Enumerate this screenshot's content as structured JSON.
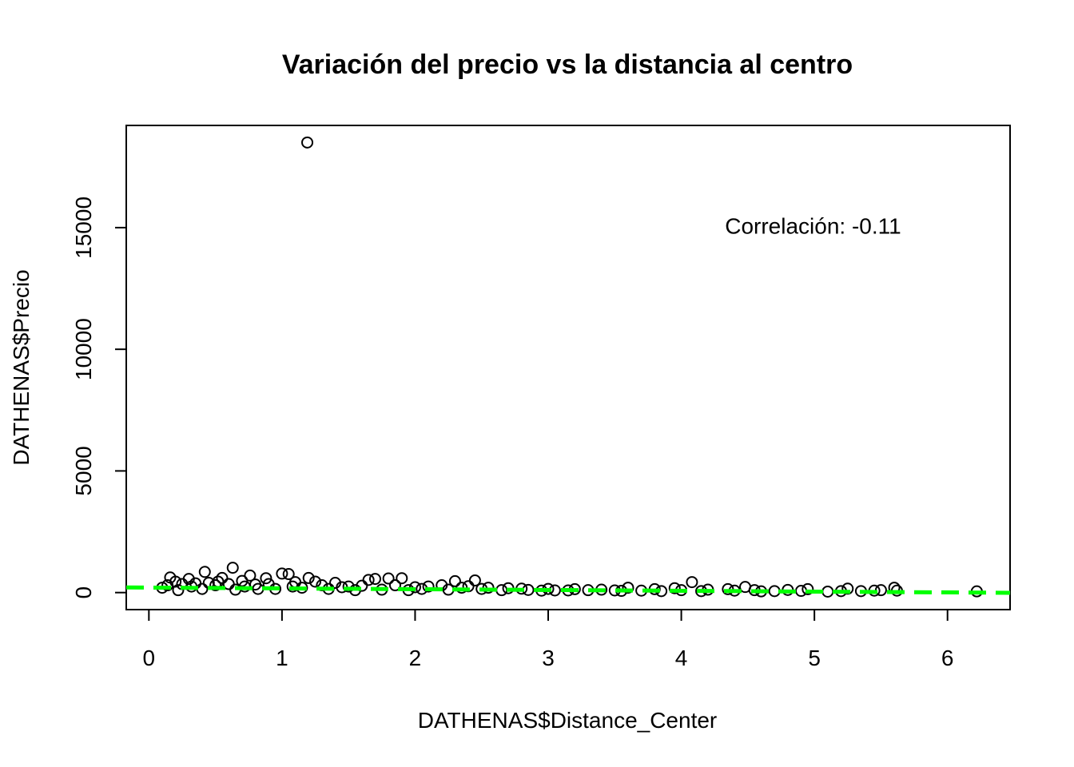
{
  "chart_data": {
    "type": "scatter",
    "title": "Variación del precio vs la distancia al centro",
    "xlabel": "DATHENAS$Distance_Center",
    "ylabel": "DATHENAS$Precio",
    "xlim": [
      -0.17,
      6.47
    ],
    "ylim": [
      -700,
      19200
    ],
    "x_ticks": [
      0,
      1,
      2,
      3,
      4,
      5,
      6
    ],
    "y_ticks": [
      0,
      5000,
      10000,
      15000
    ],
    "annotation": {
      "text": "Correlación: -0.11",
      "x": 4.99,
      "y": 14750
    },
    "trend_line": {
      "intercept": 205,
      "slope": -33,
      "color": "#00ff00",
      "style": "dashed"
    },
    "grid": false,
    "series": [
      {
        "points": [
          [
            1.19,
            18500
          ],
          [
            0.63,
            1020
          ],
          [
            0.42,
            850
          ],
          [
            1.0,
            780
          ],
          [
            1.05,
            760
          ],
          [
            0.76,
            700
          ],
          [
            0.16,
            620
          ],
          [
            0.55,
            600
          ],
          [
            0.88,
            590
          ],
          [
            1.2,
            600
          ],
          [
            1.7,
            560
          ],
          [
            1.8,
            580
          ],
          [
            1.9,
            590
          ],
          [
            0.3,
            560
          ],
          [
            1.65,
            520
          ],
          [
            2.3,
            470
          ],
          [
            2.45,
            500
          ],
          [
            4.08,
            430
          ],
          [
            0.2,
            450
          ],
          [
            0.7,
            480
          ],
          [
            1.1,
            430
          ],
          [
            1.4,
            400
          ],
          [
            0.1,
            200
          ],
          [
            0.14,
            300
          ],
          [
            0.25,
            350
          ],
          [
            0.35,
            380
          ],
          [
            0.45,
            400
          ],
          [
            0.5,
            300
          ],
          [
            0.6,
            350
          ],
          [
            0.8,
            330
          ],
          [
            0.9,
            350
          ],
          [
            1.3,
            300
          ],
          [
            1.5,
            250
          ],
          [
            1.6,
            280
          ],
          [
            2.0,
            220
          ],
          [
            2.1,
            250
          ],
          [
            2.2,
            300
          ],
          [
            2.4,
            260
          ],
          [
            2.55,
            200
          ],
          [
            2.7,
            180
          ],
          [
            2.8,
            160
          ],
          [
            3.0,
            150
          ],
          [
            3.2,
            140
          ],
          [
            3.4,
            120
          ],
          [
            3.6,
            200
          ],
          [
            3.8,
            140
          ],
          [
            3.95,
            180
          ],
          [
            4.2,
            120
          ],
          [
            4.35,
            140
          ],
          [
            4.48,
            230
          ],
          [
            4.55,
            100
          ],
          [
            4.8,
            110
          ],
          [
            4.95,
            140
          ],
          [
            5.25,
            160
          ],
          [
            5.45,
            80
          ],
          [
            5.5,
            100
          ],
          [
            5.6,
            200
          ],
          [
            6.22,
            50
          ],
          [
            0.4,
            150
          ],
          [
            0.65,
            120
          ],
          [
            0.95,
            150
          ],
          [
            1.15,
            200
          ],
          [
            1.35,
            150
          ],
          [
            1.55,
            100
          ],
          [
            1.75,
            120
          ],
          [
            1.95,
            100
          ],
          [
            2.25,
            120
          ],
          [
            2.65,
            100
          ],
          [
            2.95,
            80
          ],
          [
            3.15,
            90
          ],
          [
            3.55,
            70
          ],
          [
            3.85,
            60
          ],
          [
            4.15,
            60
          ],
          [
            4.6,
            50
          ],
          [
            5.1,
            40
          ],
          [
            5.35,
            60
          ],
          [
            0.22,
            100
          ],
          [
            0.32,
            250
          ],
          [
            0.52,
            450
          ],
          [
            0.72,
            250
          ],
          [
            0.82,
            150
          ],
          [
            1.08,
            250
          ],
          [
            1.25,
            450
          ],
          [
            1.45,
            220
          ],
          [
            1.85,
            300
          ],
          [
            2.05,
            150
          ],
          [
            2.35,
            200
          ],
          [
            2.5,
            150
          ],
          [
            2.85,
            110
          ],
          [
            3.05,
            90
          ],
          [
            3.3,
            100
          ],
          [
            3.5,
            90
          ],
          [
            3.7,
            80
          ],
          [
            4.0,
            100
          ],
          [
            4.4,
            80
          ],
          [
            4.7,
            60
          ],
          [
            4.9,
            70
          ],
          [
            5.2,
            60
          ],
          [
            5.62,
            80
          ]
        ]
      }
    ]
  }
}
